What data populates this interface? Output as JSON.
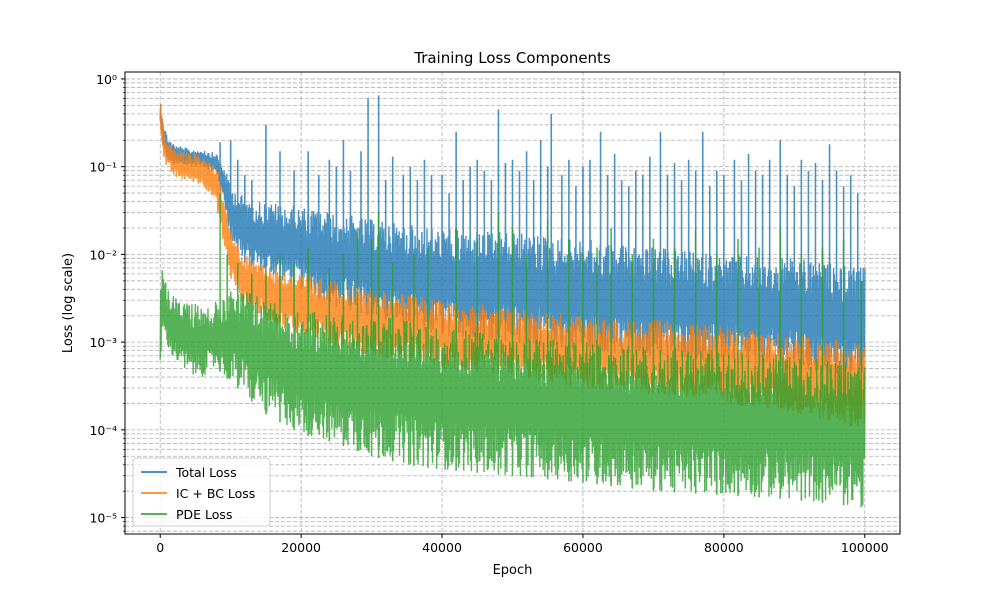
{
  "chart_data": {
    "type": "line",
    "title": "Training Loss Components",
    "xlabel": "Epoch",
    "ylabel": "Loss (log scale)",
    "yscale": "log",
    "xlim": [
      -5000,
      105000
    ],
    "ylim": [
      6.5e-06,
      1.2
    ],
    "xticks": [
      0,
      20000,
      40000,
      60000,
      80000,
      100000
    ],
    "xtick_labels": [
      "0",
      "20000",
      "40000",
      "60000",
      "80000",
      "100000"
    ],
    "yticks": [
      1e-05,
      0.0001,
      0.001,
      0.01,
      0.1,
      1
    ],
    "grid": true,
    "legend_position": "bottom-left",
    "series": [
      {
        "name": "Total Loss",
        "color": "#1f77b4",
        "x": [
          0,
          500,
          1000,
          2000,
          3000,
          4000,
          5000,
          6000,
          7000,
          8000,
          9000,
          10000,
          12000,
          15000,
          20000,
          25000,
          30000,
          35000,
          40000,
          50000,
          60000,
          70000,
          80000,
          90000,
          100000
        ],
        "band_low": [
          0.3,
          0.14,
          0.12,
          0.1,
          0.1,
          0.1,
          0.1,
          0.1,
          0.09,
          0.08,
          0.04,
          0.015,
          0.008,
          0.006,
          0.004,
          0.0025,
          0.002,
          0.0015,
          0.0012,
          0.001,
          0.0008,
          0.0007,
          0.0006,
          0.0005,
          0.0004
        ],
        "band_high": [
          0.55,
          0.3,
          0.22,
          0.18,
          0.17,
          0.16,
          0.16,
          0.16,
          0.15,
          0.14,
          0.1,
          0.06,
          0.045,
          0.04,
          0.035,
          0.03,
          0.025,
          0.022,
          0.02,
          0.018,
          0.015,
          0.012,
          0.01,
          0.009,
          0.007
        ],
        "spikes": [
          [
            8500,
            0.19
          ],
          [
            10000,
            0.2
          ],
          [
            11000,
            0.12
          ],
          [
            12000,
            0.08
          ],
          [
            13000,
            0.07
          ],
          [
            15000,
            0.3
          ],
          [
            17000,
            0.15
          ],
          [
            19000,
            0.09
          ],
          [
            21000,
            0.15
          ],
          [
            22500,
            0.08
          ],
          [
            24000,
            0.12
          ],
          [
            25000,
            0.1
          ],
          [
            26000,
            0.2
          ],
          [
            27000,
            0.09
          ],
          [
            28500,
            0.15
          ],
          [
            29500,
            0.6
          ],
          [
            31000,
            0.65
          ],
          [
            32000,
            0.07
          ],
          [
            33000,
            0.13
          ],
          [
            34500,
            0.08
          ],
          [
            35500,
            0.1
          ],
          [
            36500,
            0.07
          ],
          [
            37500,
            0.12
          ],
          [
            38500,
            0.08
          ],
          [
            40000,
            0.08
          ],
          [
            41000,
            0.05
          ],
          [
            42000,
            0.25
          ],
          [
            43000,
            0.07
          ],
          [
            44000,
            0.1
          ],
          [
            45000,
            0.12
          ],
          [
            46000,
            0.09
          ],
          [
            47000,
            0.07
          ],
          [
            48000,
            0.45
          ],
          [
            49000,
            0.11
          ],
          [
            50000,
            0.12
          ],
          [
            51000,
            0.09
          ],
          [
            52000,
            0.15
          ],
          [
            53000,
            0.07
          ],
          [
            54000,
            0.2
          ],
          [
            55000,
            0.1
          ],
          [
            55500,
            0.4
          ],
          [
            57000,
            0.08
          ],
          [
            58000,
            0.12
          ],
          [
            59000,
            0.06
          ],
          [
            60000,
            0.1
          ],
          [
            61000,
            0.12
          ],
          [
            62500,
            0.25
          ],
          [
            63500,
            0.08
          ],
          [
            64500,
            0.14
          ],
          [
            65500,
            0.07
          ],
          [
            66500,
            0.06
          ],
          [
            67500,
            0.09
          ],
          [
            68500,
            0.08
          ],
          [
            69500,
            0.13
          ],
          [
            71000,
            0.25
          ],
          [
            72000,
            0.08
          ],
          [
            73000,
            0.11
          ],
          [
            74000,
            0.07
          ],
          [
            75000,
            0.12
          ],
          [
            76000,
            0.09
          ],
          [
            77000,
            0.25
          ],
          [
            78000,
            0.06
          ],
          [
            79000,
            0.09
          ],
          [
            80000,
            0.08
          ],
          [
            81500,
            0.12
          ],
          [
            82500,
            0.07
          ],
          [
            83500,
            0.14
          ],
          [
            84500,
            0.09
          ],
          [
            85500,
            0.08
          ],
          [
            86500,
            0.12
          ],
          [
            88000,
            0.2
          ],
          [
            89000,
            0.08
          ],
          [
            90000,
            0.06
          ],
          [
            91000,
            0.12
          ],
          [
            92000,
            0.09
          ],
          [
            93000,
            0.11
          ],
          [
            94000,
            0.07
          ],
          [
            95000,
            0.18
          ],
          [
            96000,
            0.09
          ],
          [
            97000,
            0.06
          ],
          [
            98000,
            0.08
          ],
          [
            99000,
            0.05
          ]
        ]
      },
      {
        "name": "IC + BC Loss",
        "color": "#ff7f0e",
        "x": [
          0,
          500,
          1000,
          2000,
          3000,
          4000,
          5000,
          6000,
          7000,
          8000,
          9000,
          10000,
          12000,
          15000,
          20000,
          25000,
          30000,
          35000,
          40000,
          50000,
          60000,
          70000,
          80000,
          90000,
          100000
        ],
        "band_low": [
          0.3,
          0.12,
          0.09,
          0.075,
          0.07,
          0.068,
          0.065,
          0.06,
          0.05,
          0.035,
          0.012,
          0.005,
          0.0025,
          0.0018,
          0.0012,
          0.0009,
          0.0007,
          0.0006,
          0.0005,
          0.0004,
          0.0003,
          0.00025,
          0.0002,
          0.00015,
          0.0001
        ],
        "band_high": [
          0.55,
          0.28,
          0.2,
          0.16,
          0.15,
          0.14,
          0.14,
          0.13,
          0.12,
          0.1,
          0.05,
          0.02,
          0.01,
          0.008,
          0.006,
          0.005,
          0.004,
          0.0035,
          0.003,
          0.0025,
          0.002,
          0.0018,
          0.0015,
          0.0012,
          0.001
        ]
      },
      {
        "name": "PDE Loss",
        "color": "#2ca02c",
        "x": [
          0,
          200,
          1000,
          2000,
          3000,
          4000,
          5000,
          6000,
          7000,
          8000,
          10000,
          12000,
          15000,
          20000,
          25000,
          30000,
          35000,
          40000,
          50000,
          60000,
          70000,
          80000,
          90000,
          100000
        ],
        "band_low": [
          0.0003,
          0.0012,
          0.0009,
          0.0006,
          0.0005,
          0.0004,
          0.0004,
          0.0004,
          0.00045,
          0.0005,
          0.00035,
          0.00025,
          0.00015,
          9e-05,
          7e-05,
          5e-05,
          4e-05,
          3.5e-05,
          3e-05,
          2.5e-05,
          2e-05,
          1.8e-05,
          1.6e-05,
          1.3e-05
        ],
        "band_high": [
          0.005,
          0.007,
          0.004,
          0.0035,
          0.003,
          0.003,
          0.0028,
          0.0025,
          0.0025,
          0.003,
          0.004,
          0.004,
          0.003,
          0.0025,
          0.002,
          0.002,
          0.0018,
          0.0015,
          0.0012,
          0.001,
          0.0009,
          0.0008,
          0.0007,
          0.0006
        ],
        "spikes": [
          [
            8500,
            0.05
          ],
          [
            9500,
            0.01
          ],
          [
            11000,
            0.008
          ],
          [
            13000,
            0.006
          ],
          [
            15000,
            0.006
          ],
          [
            17000,
            0.01
          ],
          [
            19000,
            0.008
          ],
          [
            21000,
            0.012
          ],
          [
            24000,
            0.007
          ],
          [
            26000,
            0.01
          ],
          [
            28000,
            0.02
          ],
          [
            30000,
            0.015
          ],
          [
            31000,
            0.03
          ],
          [
            33000,
            0.008
          ],
          [
            36000,
            0.01
          ],
          [
            38000,
            0.012
          ],
          [
            42000,
            0.02
          ],
          [
            45000,
            0.015
          ],
          [
            48000,
            0.03
          ],
          [
            50000,
            0.02
          ],
          [
            52000,
            0.01
          ],
          [
            55000,
            0.025
          ],
          [
            58000,
            0.015
          ],
          [
            60000,
            0.01
          ],
          [
            62000,
            0.012
          ],
          [
            64000,
            0.02
          ],
          [
            67000,
            0.01
          ],
          [
            70000,
            0.015
          ],
          [
            73000,
            0.012
          ],
          [
            76000,
            0.02
          ],
          [
            79000,
            0.01
          ],
          [
            82000,
            0.015
          ],
          [
            85000,
            0.012
          ],
          [
            88000,
            0.02
          ],
          [
            91000,
            0.01
          ],
          [
            94000,
            0.012
          ],
          [
            97000,
            0.015
          ],
          [
            99500,
            0.005
          ]
        ]
      }
    ]
  }
}
